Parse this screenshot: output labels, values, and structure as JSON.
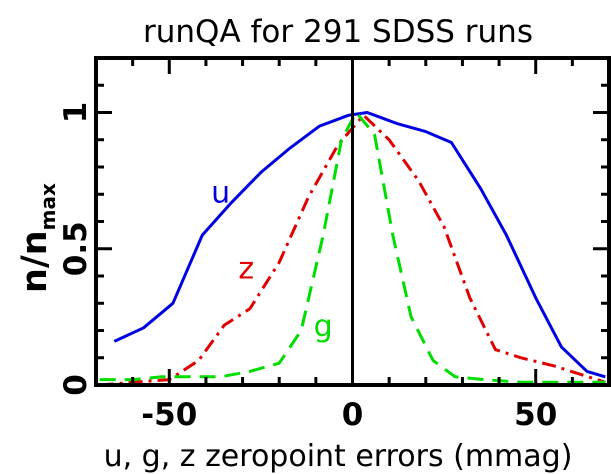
{
  "chart_data": {
    "type": "line",
    "title": "runQA for 291 SDSS runs",
    "xlabel": "u, g, z zeropoint errors (mmag)",
    "ylabel": "n/n",
    "ylabel_subscript": "max",
    "xlim": [
      -70,
      70
    ],
    "ylim": [
      0,
      1.2
    ],
    "xticks": [
      {
        "value": -50,
        "label": "-50"
      },
      {
        "value": 0,
        "label": "0"
      },
      {
        "value": 50,
        "label": "50"
      }
    ],
    "yticks": [
      {
        "value": 0,
        "label": "0"
      },
      {
        "value": 0.5,
        "label": "0.5"
      },
      {
        "value": 1,
        "label": "1"
      }
    ],
    "grid": false,
    "reference_line_x": 0,
    "series": [
      {
        "name": "u",
        "color": "#0000e0",
        "dash": "solid",
        "x": [
          -65,
          -57,
          -49,
          -41,
          -33,
          -25,
          -17,
          -9,
          -1,
          4,
          12,
          20,
          27,
          35,
          42,
          50,
          57,
          64,
          69
        ],
        "y": [
          0.16,
          0.21,
          0.3,
          0.55,
          0.67,
          0.78,
          0.87,
          0.95,
          0.99,
          1.0,
          0.96,
          0.93,
          0.89,
          0.72,
          0.55,
          0.32,
          0.14,
          0.05,
          0.03
        ]
      },
      {
        "name": "z",
        "color": "#e00000",
        "dash": "dashdot",
        "x": [
          -69,
          -60,
          -50,
          -42,
          -35,
          -28,
          -20,
          -12,
          -4,
          3,
          10,
          18,
          25,
          32,
          39,
          46,
          55,
          62,
          69
        ],
        "y": [
          0.0,
          0.01,
          0.02,
          0.09,
          0.22,
          0.28,
          0.45,
          0.69,
          0.88,
          0.99,
          0.9,
          0.75,
          0.58,
          0.32,
          0.13,
          0.1,
          0.07,
          0.04,
          0.01
        ]
      },
      {
        "name": "g",
        "color": "#00dd00",
        "dash": "dashed",
        "x": [
          -69,
          -60,
          -52,
          -44,
          -36,
          -28,
          -20,
          -14,
          -8,
          -3,
          1,
          6,
          11,
          16,
          22,
          28,
          36,
          46,
          56,
          69
        ],
        "y": [
          0.02,
          0.02,
          0.03,
          0.03,
          0.03,
          0.05,
          0.08,
          0.2,
          0.55,
          0.9,
          1.0,
          0.92,
          0.55,
          0.25,
          0.09,
          0.03,
          0.02,
          0.01,
          0.01,
          0.01
        ]
      }
    ],
    "annotations": [
      {
        "text": "u",
        "x": -36,
        "y": 0.67,
        "color": "#0000e0"
      },
      {
        "text": "z",
        "x": -29,
        "y": 0.39,
        "color": "#e00000"
      },
      {
        "text": "g",
        "x": -8,
        "y": 0.18,
        "color": "#00dd00"
      }
    ]
  }
}
